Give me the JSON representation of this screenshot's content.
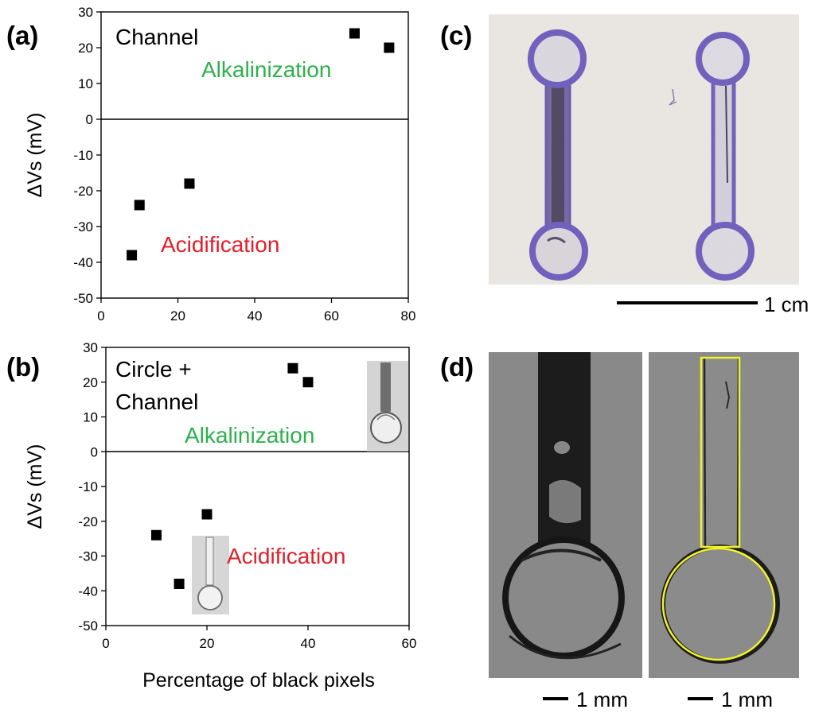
{
  "panels": {
    "a": "(a)",
    "b": "(b)",
    "c": "(c)",
    "d": "(d)"
  },
  "colors": {
    "alkalinization": "#2db04b",
    "acidification": "#e0202a",
    "marker": "#000000",
    "photo_bg_c": "#e9e6e1",
    "photo_bg_d": "#8a8a8a",
    "ink_purple": "#7d6bb8",
    "outline_yellow": "#f2f22a"
  },
  "chart_data": [
    {
      "id": "a",
      "type": "scatter",
      "ylabel": "ΔVs  (mV)",
      "xlabel": "",
      "xlim": [
        0,
        80
      ],
      "ylim": [
        -50,
        30
      ],
      "xticks": [
        "0",
        "20",
        "40",
        "60",
        "80"
      ],
      "yticks": [
        "30",
        "20",
        "10",
        "0",
        "-10",
        "-20",
        "-30",
        "-40",
        "-50"
      ],
      "grid": false,
      "zero_line": true,
      "points": [
        {
          "x": 66,
          "y": 24
        },
        {
          "x": 75,
          "y": 20
        },
        {
          "x": 23,
          "y": -18
        },
        {
          "x": 10,
          "y": -24
        },
        {
          "x": 8,
          "y": -38
        }
      ],
      "annotations": {
        "label": "Channel",
        "alkalinization": "Alkalinization",
        "acidification": "Acidification"
      }
    },
    {
      "id": "b",
      "type": "scatter",
      "ylabel": "ΔVs  (mV)",
      "xlabel": "Percentage of black pixels",
      "xlim": [
        0,
        60
      ],
      "ylim": [
        -50,
        30
      ],
      "xticks": [
        "0",
        "20",
        "40",
        "60"
      ],
      "yticks": [
        "30",
        "20",
        "10",
        "0",
        "-10",
        "-20",
        "-30",
        "-40",
        "-50"
      ],
      "grid": false,
      "zero_line": true,
      "points": [
        {
          "x": 37,
          "y": 24
        },
        {
          "x": 40,
          "y": 20
        },
        {
          "x": 20,
          "y": -18
        },
        {
          "x": 10,
          "y": -24
        },
        {
          "x": 14.5,
          "y": -38
        }
      ],
      "annotations": {
        "label_line1": "Circle +",
        "label_line2": "Channel",
        "alkalinization": "Alkalinization",
        "acidification": "Acidification"
      }
    }
  ],
  "scale_bars": {
    "c": "1 cm",
    "d_left": "1 mm",
    "d_right": "1 mm"
  }
}
